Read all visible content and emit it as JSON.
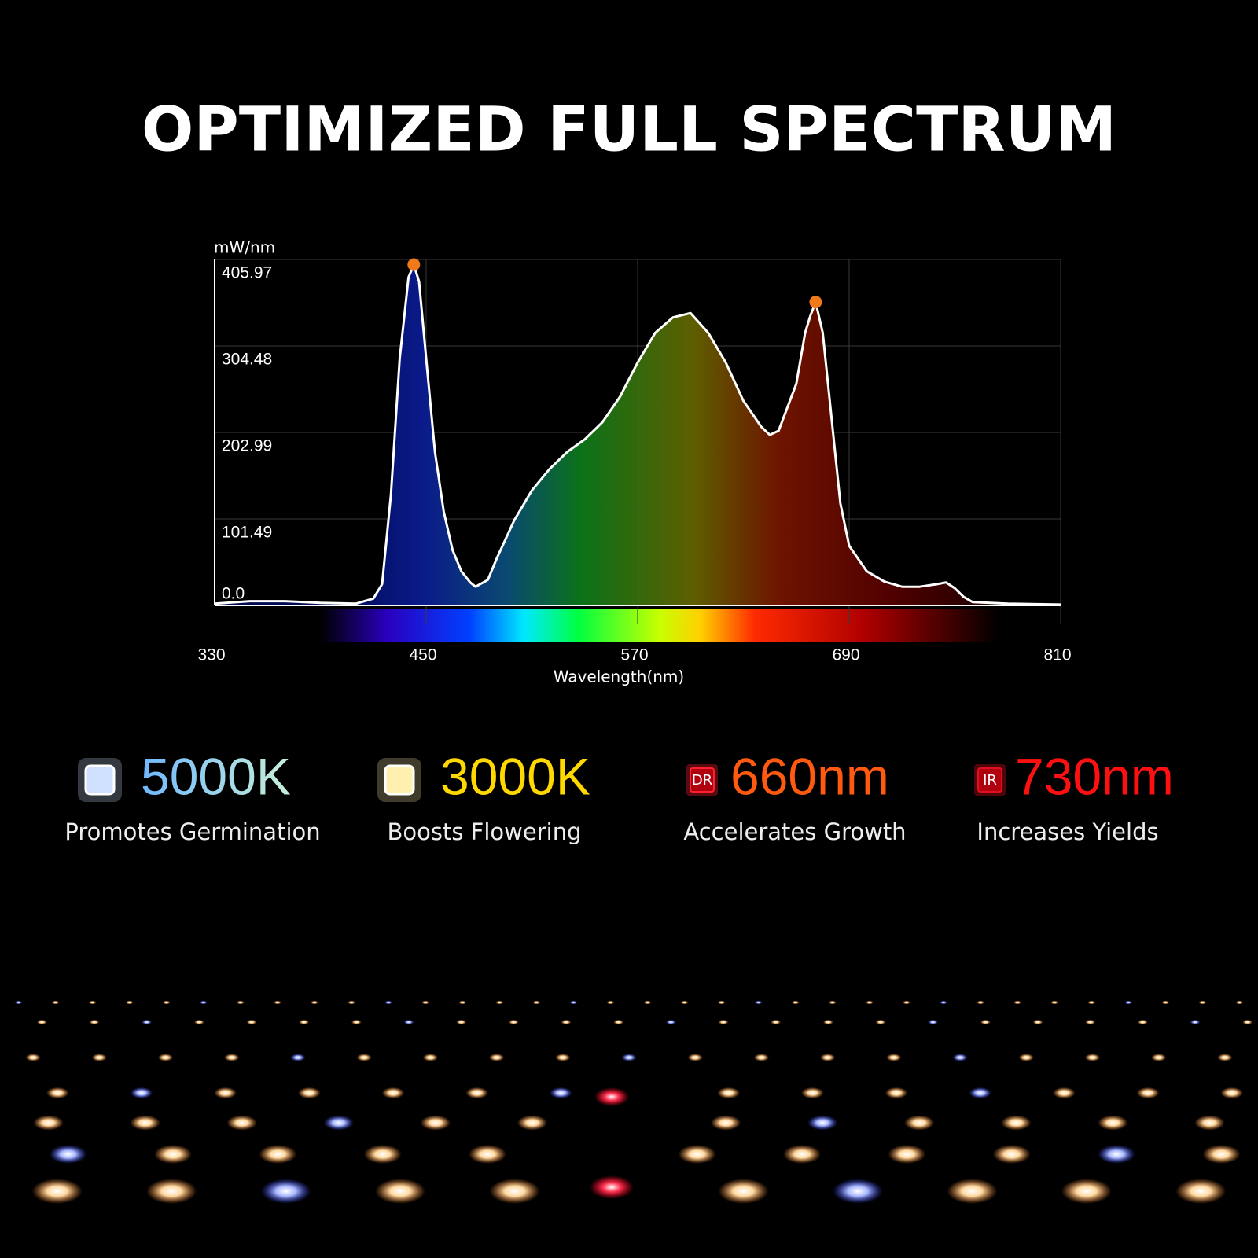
{
  "chart_data": {
    "type": "line",
    "title": "OPTIMIZED FULL SPECTRUM",
    "y_label": "mW/nm",
    "x_label": "Wavelength(nm)",
    "x": [
      330,
      350,
      370,
      390,
      410,
      420,
      425,
      430,
      435,
      440,
      443,
      446,
      450,
      455,
      460,
      465,
      470,
      475,
      478,
      485,
      490,
      500,
      510,
      520,
      530,
      540,
      550,
      560,
      570,
      580,
      590,
      600,
      610,
      620,
      630,
      640,
      645,
      650,
      660,
      665,
      668,
      671,
      675,
      680,
      685,
      690,
      700,
      710,
      720,
      730,
      740,
      745,
      750,
      755,
      760,
      780,
      810
    ],
    "values": [
      2,
      5,
      5,
      3,
      2,
      8,
      25,
      130,
      290,
      385,
      400,
      380,
      290,
      180,
      110,
      65,
      40,
      27,
      22,
      30,
      55,
      100,
      135,
      160,
      180,
      195,
      215,
      245,
      285,
      320,
      338,
      343,
      320,
      285,
      240,
      210,
      200,
      205,
      260,
      320,
      340,
      356,
      320,
      220,
      120,
      70,
      40,
      28,
      22,
      22,
      25,
      27,
      20,
      10,
      4,
      2,
      1
    ],
    "color": "#ffffff",
    "markers": {
      "x": [
        443,
        671
      ],
      "values": [
        400,
        356
      ],
      "color": "#f07a1a"
    },
    "xlim": [
      330,
      810
    ],
    "xticks": [
      330,
      450,
      570,
      690,
      810
    ],
    "ylim": [
      0,
      405.97
    ],
    "yticks": [
      {
        "value": 0,
        "label": "0.0"
      },
      101.49,
      202.99,
      304.48,
      405.97
    ],
    "grid": true
  },
  "features": [
    {
      "value": "5000K",
      "caption": "Promotes Germination"
    },
    {
      "value": "3000K",
      "caption": "Boosts Flowering"
    },
    {
      "badge": "DR",
      "value": "660nm",
      "caption": "Accelerates Growth"
    },
    {
      "badge": "IR",
      "value": "730nm",
      "caption": "Increases Yields"
    }
  ]
}
